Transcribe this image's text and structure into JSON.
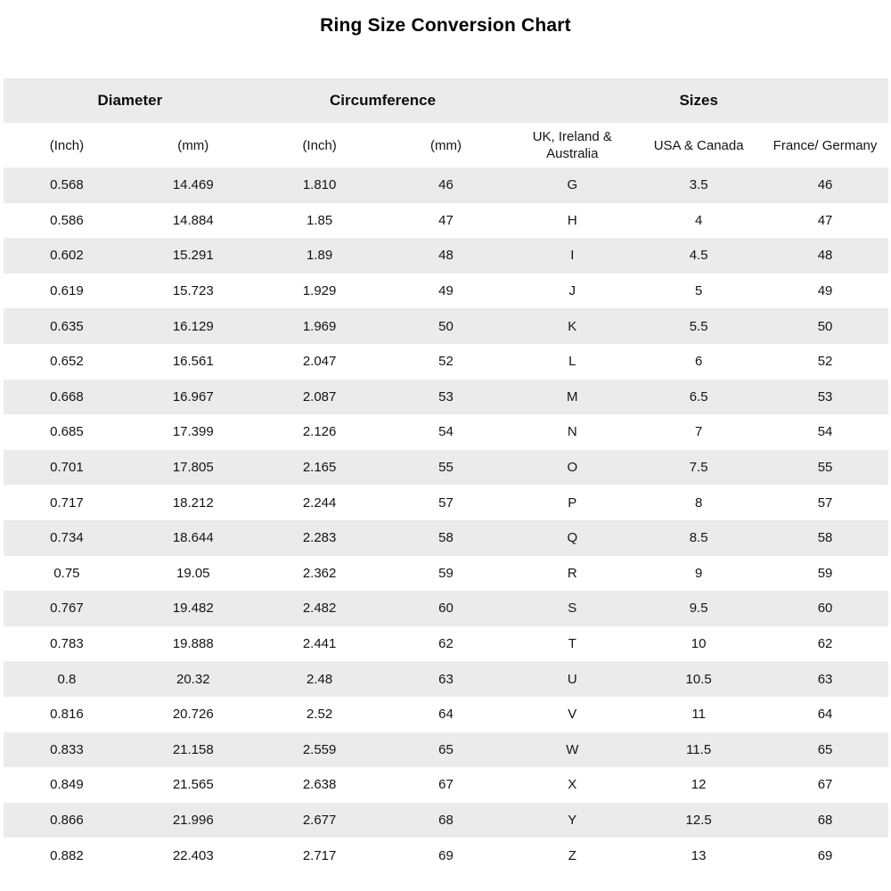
{
  "title": "Ring Size Conversion Chart",
  "chart_data": {
    "type": "table",
    "title": "Ring Size Conversion Chart",
    "group_headers": [
      {
        "label": "Diameter",
        "colspan": 2
      },
      {
        "label": "Circumference",
        "colspan": 2
      },
      {
        "label": "Sizes",
        "colspan": 3
      }
    ],
    "columns": [
      "(Inch)",
      "(mm)",
      "(Inch)",
      "(mm)",
      "UK, Ireland & Australia",
      "USA & Canada",
      "France/ Germany"
    ],
    "rows": [
      [
        "0.568",
        "14.469",
        "1.810",
        "46",
        "G",
        "3.5",
        "46"
      ],
      [
        "0.586",
        "14.884",
        "1.85",
        "47",
        "H",
        "4",
        "47"
      ],
      [
        "0.602",
        "15.291",
        "1.89",
        "48",
        "I",
        "4.5",
        "48"
      ],
      [
        "0.619",
        "15.723",
        "1.929",
        "49",
        "J",
        "5",
        "49"
      ],
      [
        "0.635",
        "16.129",
        "1.969",
        "50",
        "K",
        "5.5",
        "50"
      ],
      [
        "0.652",
        "16.561",
        "2.047",
        "52",
        "L",
        "6",
        "52"
      ],
      [
        "0.668",
        "16.967",
        "2.087",
        "53",
        "M",
        "6.5",
        "53"
      ],
      [
        "0.685",
        "17.399",
        "2.126",
        "54",
        "N",
        "7",
        "54"
      ],
      [
        "0.701",
        "17.805",
        "2.165",
        "55",
        "O",
        "7.5",
        "55"
      ],
      [
        "0.717",
        "18.212",
        "2.244",
        "57",
        "P",
        "8",
        "57"
      ],
      [
        "0.734",
        "18.644",
        "2.283",
        "58",
        "Q",
        "8.5",
        "58"
      ],
      [
        "0.75",
        "19.05",
        "2.362",
        "59",
        "R",
        "9",
        "59"
      ],
      [
        "0.767",
        "19.482",
        "2.482",
        "60",
        "S",
        "9.5",
        "60"
      ],
      [
        "0.783",
        "19.888",
        "2.441",
        "62",
        "T",
        "10",
        "62"
      ],
      [
        "0.8",
        "20.32",
        "2.48",
        "63",
        "U",
        "10.5",
        "63"
      ],
      [
        "0.816",
        "20.726",
        "2.52",
        "64",
        "V",
        "11",
        "64"
      ],
      [
        "0.833",
        "21.158",
        "2.559",
        "65",
        "W",
        "11.5",
        "65"
      ],
      [
        "0.849",
        "21.565",
        "2.638",
        "67",
        "X",
        "12",
        "67"
      ],
      [
        "0.866",
        "21.996",
        "2.677",
        "68",
        "Y",
        "12.5",
        "68"
      ],
      [
        "0.882",
        "22.403",
        "2.717",
        "69",
        "Z",
        "13",
        "69"
      ]
    ],
    "layout": {
      "striped": true,
      "first_data_row_style": "striped",
      "legend": "none",
      "grid": "off"
    },
    "colors": {
      "stripe": "#ebebeb",
      "background": "#ffffff",
      "text": "#141414"
    }
  }
}
